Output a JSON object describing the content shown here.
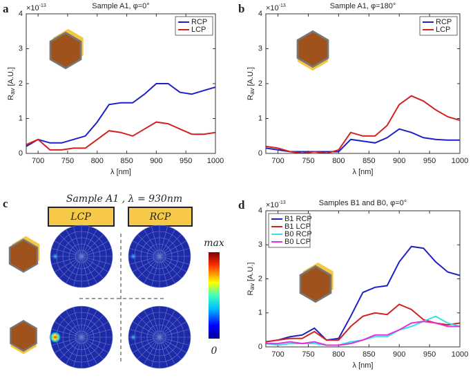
{
  "chart_data": [
    {
      "type": "line",
      "label": "a",
      "title": "Sample A1, φ=0°",
      "scale_base": "×10",
      "scale_exp": "-13",
      "ylabel": "R",
      "ylabel_sub": "av",
      "ylabel_unit": "[A.U.]",
      "xlabel": "λ [nm]",
      "x": [
        680,
        700,
        720,
        740,
        760,
        780,
        800,
        820,
        840,
        860,
        880,
        900,
        920,
        940,
        960,
        980,
        1000
      ],
      "series": [
        {
          "name": "RCP",
          "color": "#1f1fc8",
          "values": [
            0.2,
            0.4,
            0.3,
            0.3,
            0.4,
            0.5,
            0.9,
            1.4,
            1.45,
            1.45,
            1.7,
            2.0,
            2.0,
            1.75,
            1.7,
            1.8,
            1.9
          ]
        },
        {
          "name": "LCP",
          "color": "#d42020",
          "values": [
            0.25,
            0.4,
            0.1,
            0.1,
            0.15,
            0.15,
            0.4,
            0.65,
            0.6,
            0.5,
            0.7,
            0.9,
            0.85,
            0.7,
            0.55,
            0.55,
            0.6
          ]
        }
      ],
      "xlim": [
        680,
        1000
      ],
      "ylim": [
        0,
        4
      ],
      "xticks": [
        700,
        750,
        800,
        850,
        900,
        950,
        1000
      ],
      "yticks": [
        0,
        1,
        2,
        3,
        4
      ],
      "legend": "upper right"
    },
    {
      "type": "line",
      "label": "b",
      "title": "Sample A1, φ=180°",
      "scale_base": "×10",
      "scale_exp": "-13",
      "ylabel": "R",
      "ylabel_sub": "av",
      "ylabel_unit": "[A.U.]",
      "xlabel": "λ [nm]",
      "x": [
        680,
        700,
        720,
        740,
        760,
        780,
        800,
        820,
        840,
        860,
        880,
        900,
        920,
        940,
        960,
        980,
        1000
      ],
      "series": [
        {
          "name": "RCP",
          "color": "#1f1fc8",
          "values": [
            0.15,
            0.1,
            0.05,
            0.05,
            0.05,
            0.05,
            0.05,
            0.4,
            0.35,
            0.3,
            0.45,
            0.7,
            0.6,
            0.45,
            0.4,
            0.38,
            0.38
          ]
        },
        {
          "name": "LCP",
          "color": "#d42020",
          "values": [
            0.2,
            0.15,
            0.05,
            0.0,
            0.05,
            0.0,
            0.1,
            0.6,
            0.5,
            0.5,
            0.8,
            1.4,
            1.65,
            1.5,
            1.25,
            1.05,
            0.95
          ]
        }
      ],
      "xlim": [
        680,
        1000
      ],
      "ylim": [
        0,
        4
      ],
      "xticks": [
        700,
        750,
        800,
        850,
        900,
        950,
        1000
      ],
      "yticks": [
        0,
        1,
        2,
        3,
        4
      ],
      "legend": "upper right"
    },
    {
      "type": "line",
      "label": "d",
      "title": "Samples B1 and B0, φ=0°",
      "scale_base": "×10",
      "scale_exp": "-13",
      "ylabel": "R",
      "ylabel_sub": "av",
      "ylabel_unit": "[A.U.]",
      "xlabel": "λ [nm]",
      "x": [
        680,
        700,
        720,
        740,
        760,
        780,
        800,
        820,
        840,
        860,
        880,
        900,
        920,
        940,
        960,
        980,
        1000
      ],
      "series": [
        {
          "name": "B1 RCP",
          "color": "#1f1fc8",
          "values": [
            0.15,
            0.2,
            0.3,
            0.35,
            0.55,
            0.2,
            0.25,
            0.9,
            1.6,
            1.75,
            1.8,
            2.5,
            2.95,
            2.9,
            2.5,
            2.2,
            2.1
          ]
        },
        {
          "name": "B1 LCP",
          "color": "#d42020",
          "values": [
            0.15,
            0.2,
            0.25,
            0.25,
            0.45,
            0.2,
            0.2,
            0.6,
            0.9,
            1.0,
            0.95,
            1.25,
            1.1,
            0.8,
            0.7,
            0.65,
            0.7
          ]
        },
        {
          "name": "B0 RCP",
          "color": "#33e0e8",
          "values": [
            0.1,
            0.05,
            0.1,
            0.1,
            0.1,
            0.05,
            0.05,
            0.15,
            0.2,
            0.3,
            0.3,
            0.5,
            0.6,
            0.75,
            0.9,
            0.7,
            0.6
          ]
        },
        {
          "name": "B0 LCP",
          "color": "#e030e0",
          "values": [
            0.1,
            0.1,
            0.15,
            0.1,
            0.15,
            0.05,
            0.05,
            0.1,
            0.2,
            0.35,
            0.35,
            0.5,
            0.7,
            0.75,
            0.7,
            0.6,
            0.6
          ]
        }
      ],
      "xlim": [
        680,
        1000
      ],
      "ylim": [
        0,
        4
      ],
      "xticks": [
        700,
        750,
        800,
        850,
        900,
        950,
        1000
      ],
      "yticks": [
        0,
        1,
        2,
        3,
        4
      ],
      "legend": "upper left"
    }
  ],
  "panel_c": {
    "label": "c",
    "title": "Sample A1 , λ = 930nm",
    "columns": [
      "LCP",
      "RCP"
    ],
    "colorbar_max": "max",
    "colorbar_min": "0"
  }
}
